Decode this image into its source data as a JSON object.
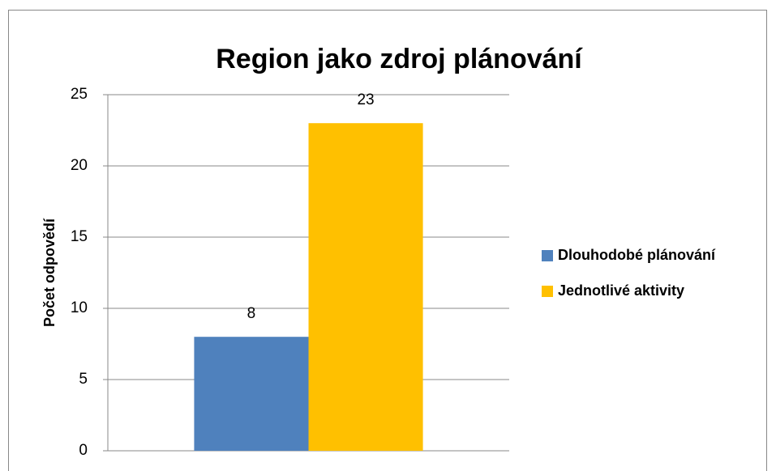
{
  "chart_data": {
    "type": "bar",
    "title": "Region jako zdroj plánování",
    "ylabel": "Počet odpovědí",
    "categories": [
      null
    ],
    "series": [
      {
        "name": "Dlouhodobé plánování",
        "color": "#4f81bd",
        "values": [
          8
        ]
      },
      {
        "name": "Jednotlivé aktivity",
        "color": "#ffc000",
        "values": [
          23
        ]
      }
    ],
    "ylim": [
      0,
      25
    ],
    "yticks": [
      0,
      5,
      10,
      15,
      20,
      25
    ],
    "grid": true,
    "legend": "right"
  }
}
